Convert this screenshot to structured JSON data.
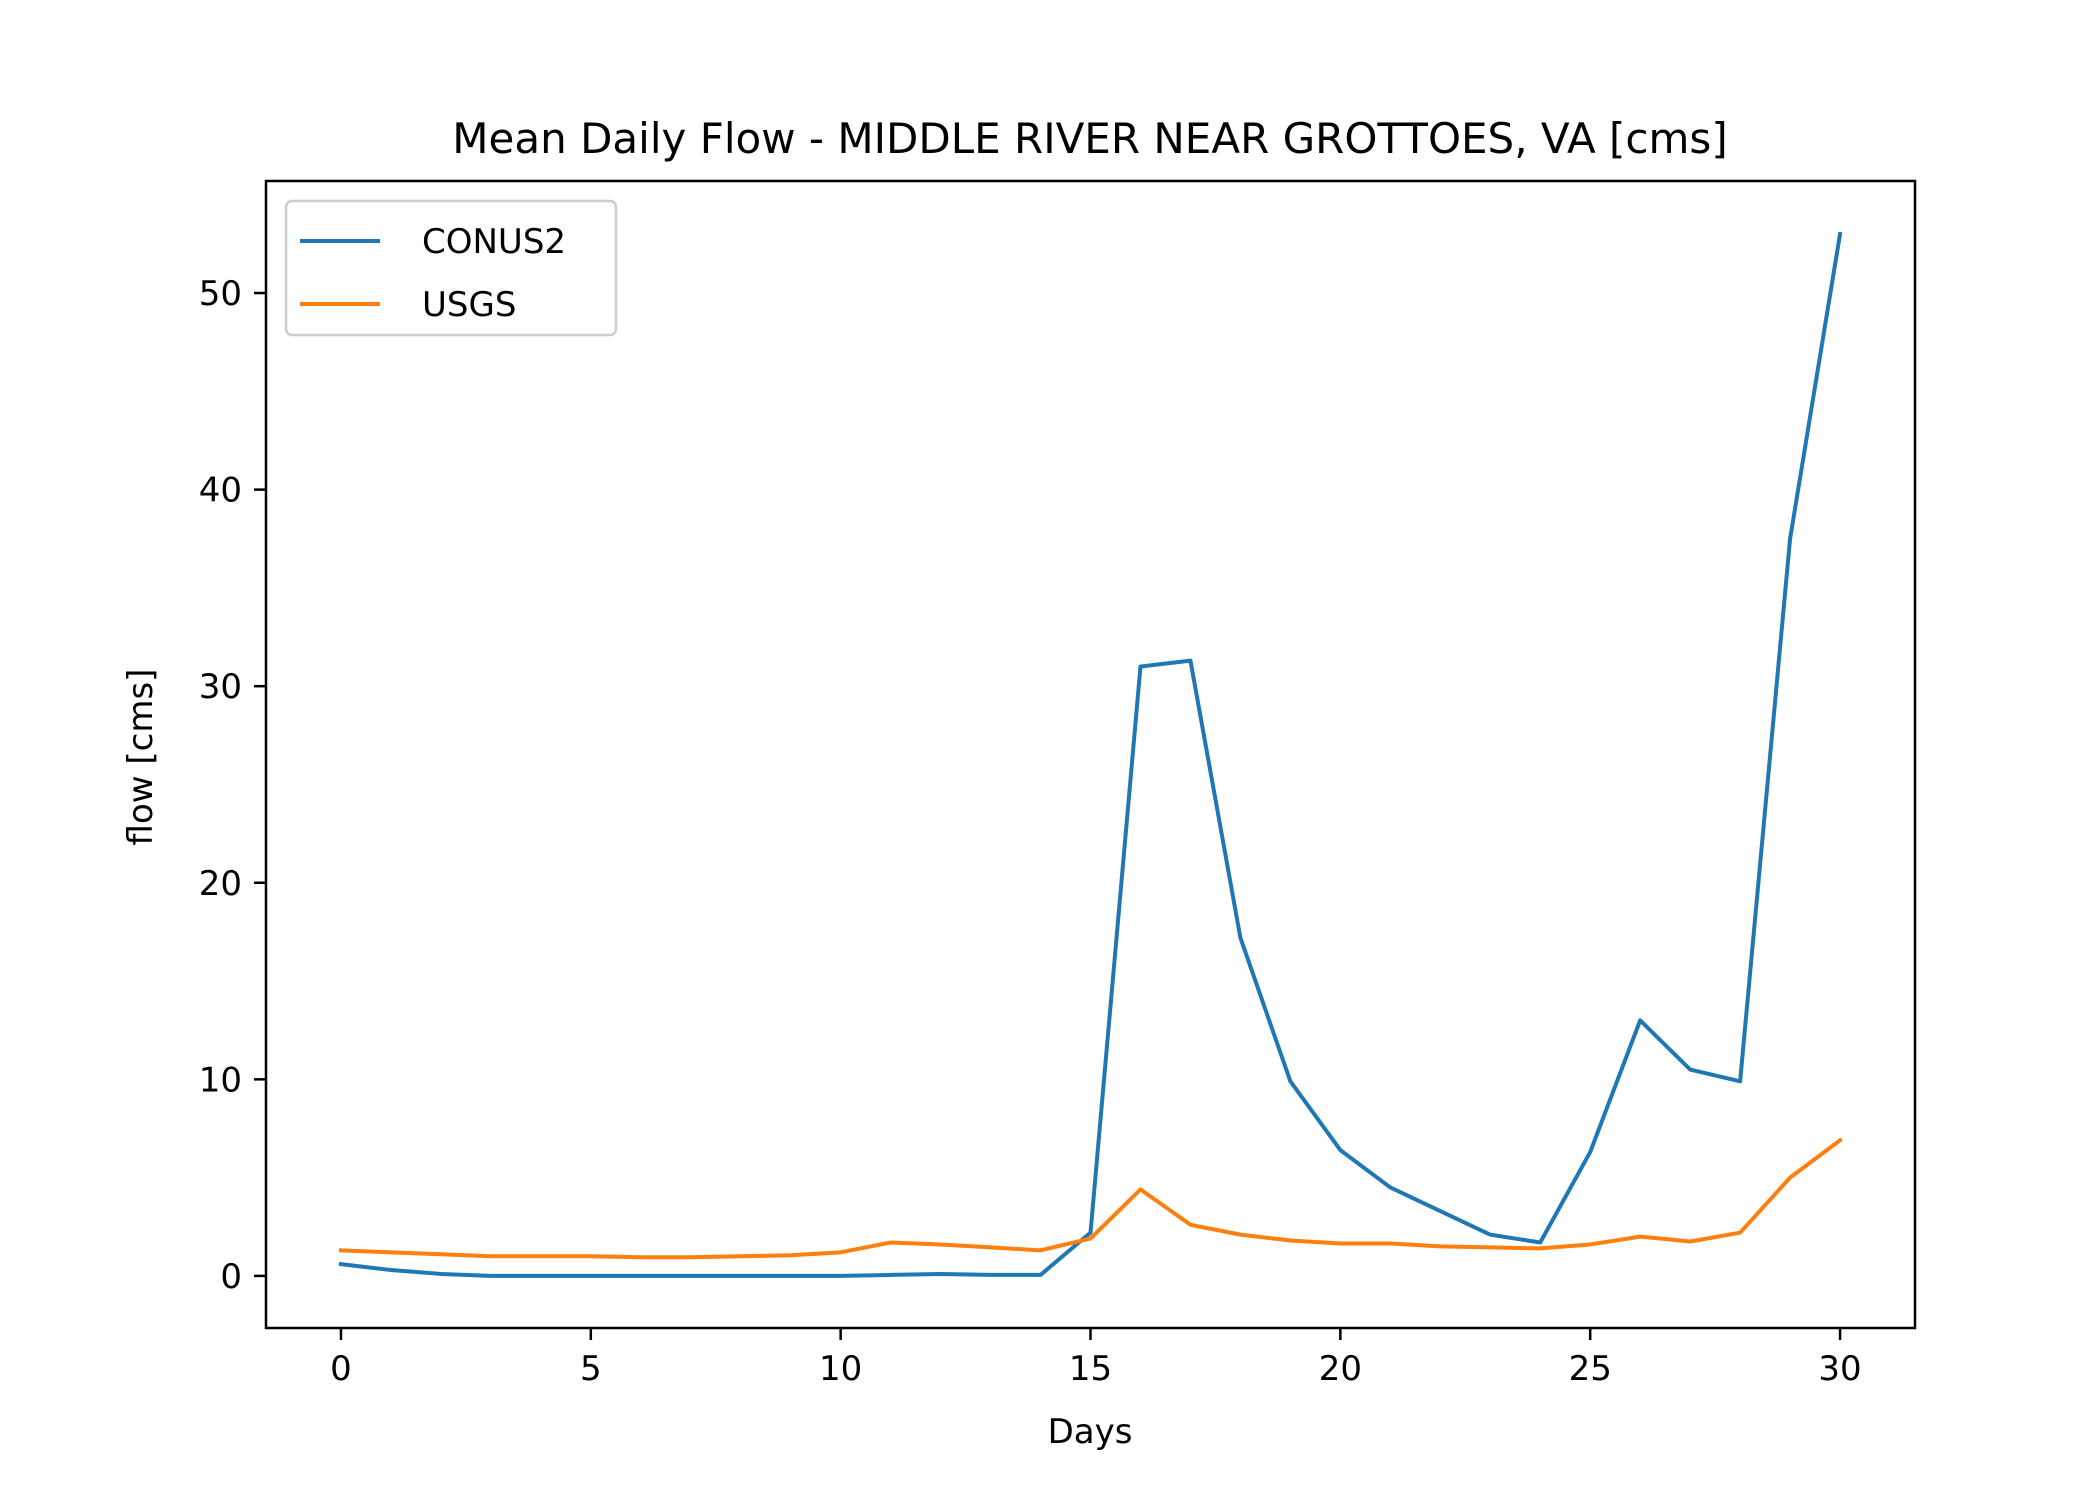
{
  "chart_data": {
    "type": "line",
    "title": "Mean Daily Flow - MIDDLE RIVER NEAR GROTTOES, VA [cms]",
    "xlabel": "Days",
    "ylabel": "flow [cms]",
    "xlim": [
      -1.5,
      31.5
    ],
    "ylim": [
      -2.65,
      55.7
    ],
    "xticks": [
      0,
      5,
      10,
      15,
      20,
      25,
      30
    ],
    "yticks": [
      0,
      10,
      20,
      30,
      40,
      50
    ],
    "grid": false,
    "legend_position": "top-left",
    "x": [
      0,
      1,
      2,
      3,
      4,
      5,
      6,
      7,
      8,
      9,
      10,
      11,
      12,
      13,
      14,
      15,
      16,
      17,
      18,
      19,
      20,
      21,
      22,
      23,
      24,
      25,
      26,
      27,
      28,
      29,
      30
    ],
    "series": [
      {
        "name": "CONUS2",
        "color": "#1f77b4",
        "values": [
          0.6,
          0.3,
          0.1,
          0.0,
          0.0,
          0.0,
          0.0,
          0.0,
          0.0,
          0.0,
          0.0,
          0.05,
          0.1,
          0.05,
          0.05,
          2.2,
          31.0,
          31.3,
          17.2,
          9.9,
          6.4,
          4.5,
          3.3,
          2.1,
          1.7,
          6.3,
          13.0,
          10.5,
          9.9,
          37.5,
          53.0
        ]
      },
      {
        "name": "USGS",
        "color": "#ff7f0e",
        "values": [
          1.3,
          1.2,
          1.1,
          1.0,
          1.0,
          1.0,
          0.95,
          0.95,
          1.0,
          1.05,
          1.2,
          1.7,
          1.6,
          1.45,
          1.3,
          1.9,
          4.4,
          2.6,
          2.1,
          1.8,
          1.65,
          1.65,
          1.5,
          1.45,
          1.4,
          1.6,
          2.0,
          1.75,
          2.2,
          5.0,
          6.9
        ]
      }
    ]
  }
}
